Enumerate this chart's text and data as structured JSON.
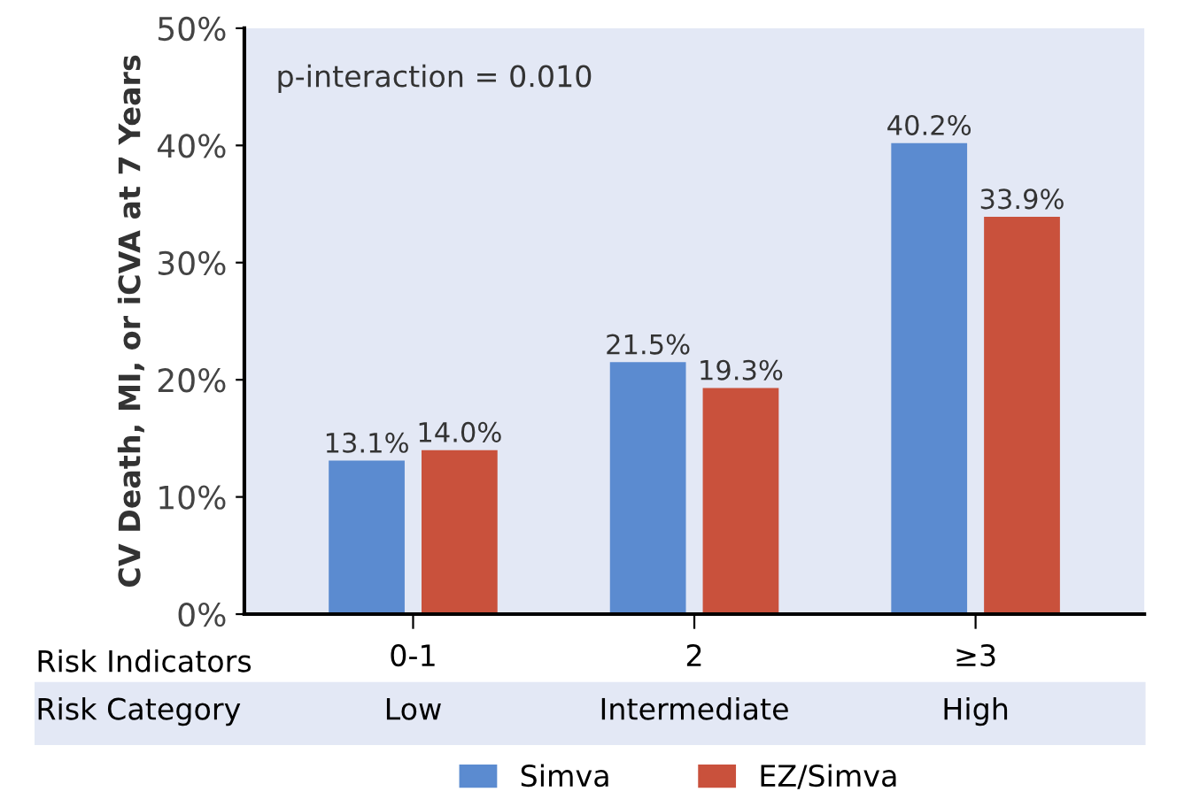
{
  "chart_data": {
    "type": "bar",
    "ylabel": "CV Death, MI, or iCVA at 7 Years",
    "categories": [
      "0-1",
      "2",
      "≥3"
    ],
    "series": [
      {
        "name": "Simva",
        "color": "#5b8bd0",
        "values": [
          13.1,
          21.5,
          40.2
        ],
        "value_labels": [
          "13.1%",
          "21.5%",
          "40.2%"
        ]
      },
      {
        "name": "EZ/Simva",
        "color": "#c9513c",
        "values": [
          14.0,
          19.3,
          33.9
        ],
        "value_labels": [
          "14.0%",
          "19.3%",
          "33.9%"
        ]
      }
    ],
    "ylim": [
      0,
      50
    ],
    "yticks": [
      {
        "value": 0,
        "label": "0%"
      },
      {
        "value": 10,
        "label": "10%"
      },
      {
        "value": 20,
        "label": "20%"
      },
      {
        "value": 30,
        "label": "30%"
      },
      {
        "value": 40,
        "label": "40%"
      },
      {
        "value": 50,
        "label": "50%"
      }
    ],
    "annotations": [
      "p-interaction = 0.010",
      "Risk Indicators",
      "Risk Category",
      "Low",
      "Intermediate",
      "High"
    ],
    "grid": false,
    "legend": "bottom"
  }
}
